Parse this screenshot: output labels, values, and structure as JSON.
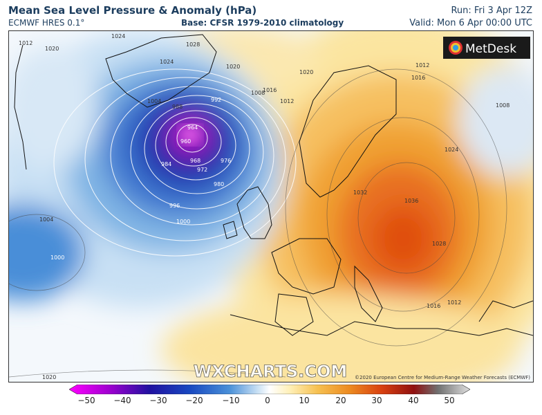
{
  "header": {
    "title": "Mean Sea Level Pressure & Anomaly (hPa)",
    "model": "ECMWF HRES 0.1°",
    "base": "Base: CFSR 1979-2010 climatology",
    "run": "Run: Fri 3 Apr 12Z",
    "valid": "Valid: Mon 6 Apr 00:00 UTC"
  },
  "branding": {
    "logo_text": "MetDesk",
    "watermark": "WXCHARTS.COM",
    "copyright": "©2020 European Centre for Medium-Range Weather Forecasts (ECMWF)"
  },
  "isobar_labels": [
    "1012",
    "1020",
    "1024",
    "1028",
    "1024",
    "1020",
    "1020",
    "1016",
    "1012",
    "1016",
    "1012",
    "1008",
    "1004",
    "988",
    "992",
    "964",
    "960",
    "968",
    "972",
    "976",
    "980",
    "984",
    "996",
    "1000",
    "1004",
    "1000",
    "1032",
    "1036",
    "1028",
    "1024",
    "1008",
    "1012",
    "1016",
    "1020"
  ],
  "colorbar": {
    "ticks": [
      "−50",
      "−40",
      "−30",
      "−20",
      "−10",
      "0",
      "10",
      "20",
      "30",
      "40",
      "50"
    ],
    "colors": [
      "#d800d8",
      "#8b00c8",
      "#2a10a0",
      "#1040c0",
      "#3f86d6",
      "#9cc6ec",
      "#eaf3fb",
      "#ffffff",
      "#fff4c0",
      "#f8d070",
      "#f0a030",
      "#e86818",
      "#c82810",
      "#800808",
      "#808080",
      "#d0d0d0"
    ]
  }
}
